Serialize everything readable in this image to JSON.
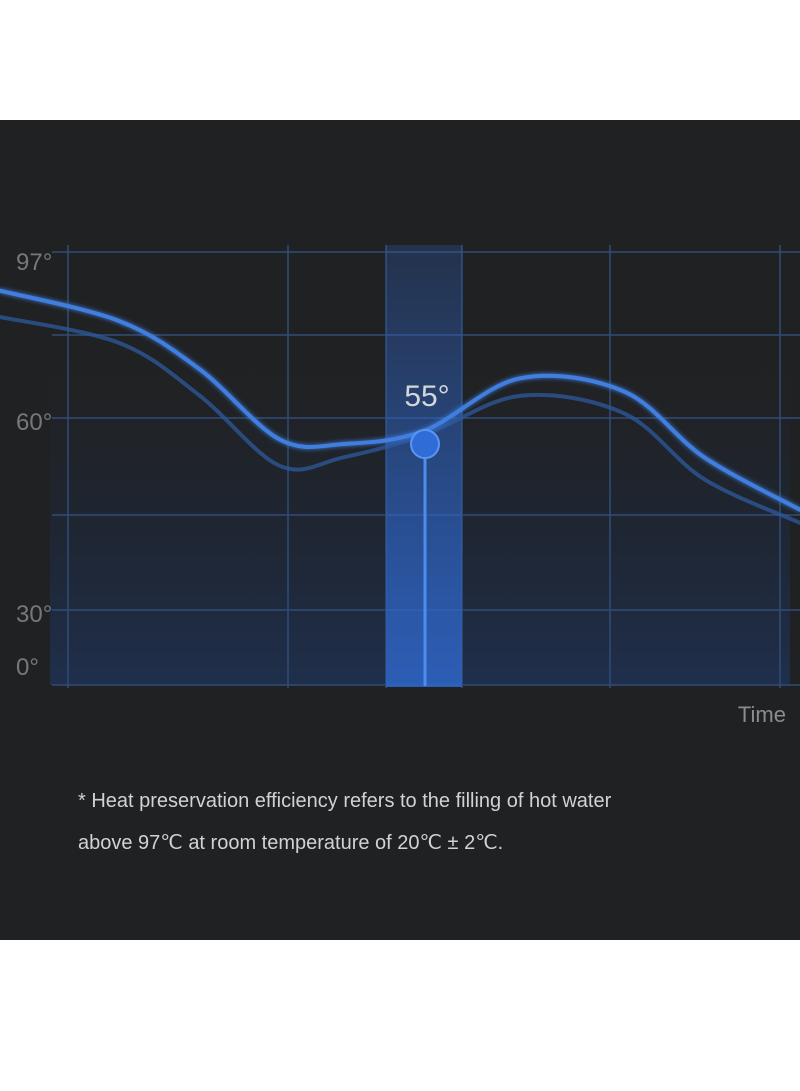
{
  "chart_data": {
    "type": "line",
    "xlabel": "Time",
    "ylabel": "",
    "yticks": [
      "97°",
      "60°",
      "30°",
      "0°"
    ],
    "ylim": [
      0,
      97
    ],
    "grid": true,
    "highlight": {
      "label": "55°",
      "value": 55,
      "x": 0.48
    },
    "series": [
      {
        "values": [
          {
            "x": 0.0,
            "y": 90
          },
          {
            "x": 0.15,
            "y": 83
          },
          {
            "x": 0.25,
            "y": 72
          },
          {
            "x": 0.35,
            "y": 56
          },
          {
            "x": 0.43,
            "y": 55
          },
          {
            "x": 0.53,
            "y": 58
          },
          {
            "x": 0.65,
            "y": 70
          },
          {
            "x": 0.78,
            "y": 67
          },
          {
            "x": 0.88,
            "y": 52
          },
          {
            "x": 1.0,
            "y": 40
          }
        ]
      },
      {
        "values": [
          {
            "x": 0.0,
            "y": 84
          },
          {
            "x": 0.15,
            "y": 78
          },
          {
            "x": 0.25,
            "y": 66
          },
          {
            "x": 0.35,
            "y": 50
          },
          {
            "x": 0.43,
            "y": 52
          },
          {
            "x": 0.53,
            "y": 57
          },
          {
            "x": 0.65,
            "y": 66
          },
          {
            "x": 0.78,
            "y": 62
          },
          {
            "x": 0.88,
            "y": 47
          },
          {
            "x": 1.0,
            "y": 37
          }
        ]
      }
    ],
    "colors": {
      "line": "#3f7fe0",
      "line_shadow": "#2e5a9e",
      "grid": "#2f4d78",
      "band": "#2e63c8",
      "marker": "#2f6cd8"
    }
  },
  "footnote": {
    "line1": "* Heat preservation efficiency refers to the filling of hot water",
    "line2": "above 97℃ at room temperature of 20℃ ± 2℃."
  }
}
